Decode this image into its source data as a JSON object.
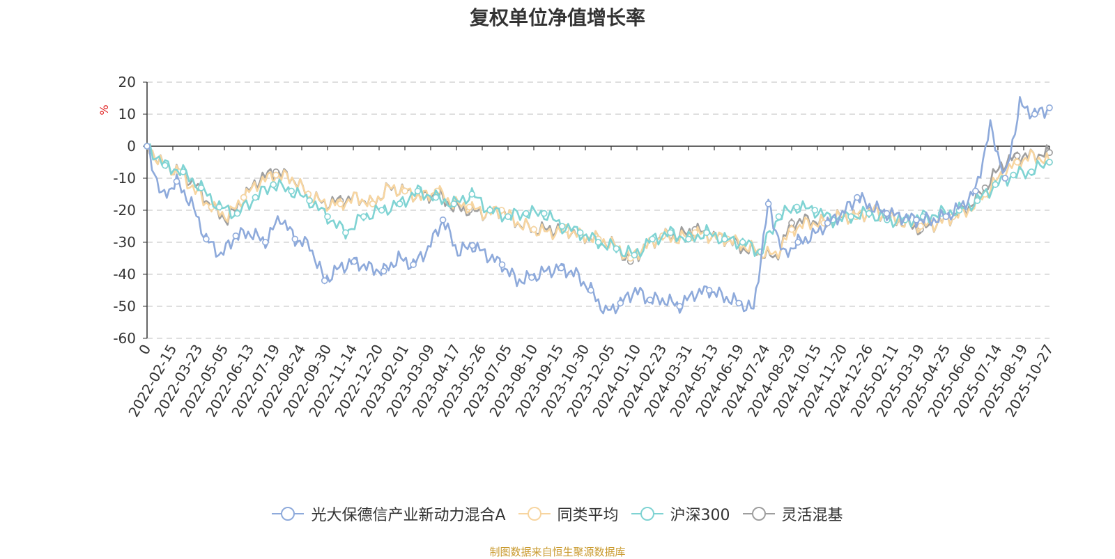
{
  "title": "复权单位净值增长率",
  "footer": "制图数据来自恒生聚源数据库",
  "chart_data": {
    "type": "line",
    "title": "复权单位净值增长率",
    "ylabel": "%",
    "xlabel": "",
    "ylim": [
      -60,
      20
    ],
    "yticks": [
      20,
      10,
      0,
      -10,
      -20,
      -30,
      -40,
      -50,
      -60
    ],
    "grid": true,
    "legend_position": "bottom",
    "x_tick_labels": [
      "0",
      "2022-02-15",
      "2022-03-23",
      "2022-05-05",
      "2022-06-13",
      "2022-07-19",
      "2022-08-24",
      "2022-09-30",
      "2022-11-14",
      "2022-12-20",
      "2023-02-01",
      "2023-03-09",
      "2023-04-17",
      "2023-05-26",
      "2023-07-05",
      "2023-08-10",
      "2023-09-15",
      "2023-10-30",
      "2023-12-05",
      "2024-01-10",
      "2024-02-23",
      "2024-03-31",
      "2024-05-13",
      "2024-06-19",
      "2024-07-24",
      "2024-08-29",
      "2024-10-15",
      "2024-11-20",
      "2024-12-26",
      "2025-02-11",
      "2025-03-19",
      "2025-04-25",
      "2025-06-06",
      "2025-07-14",
      "2025-08-19",
      "2025-10-27"
    ],
    "series": [
      {
        "name": "光大保德信产业新动力混合A",
        "color": "#8eaadb",
        "values": [
          0,
          -16,
          -11,
          -18,
          -29,
          -34,
          -28,
          -27,
          -30,
          -22,
          -29,
          -31,
          -42,
          -38,
          -36,
          -38,
          -39,
          -35,
          -37,
          -32,
          -23,
          -33,
          -31,
          -34,
          -37,
          -42,
          -41,
          -39,
          -38,
          -40,
          -45,
          -52,
          -49,
          -45,
          -48,
          -48,
          -50,
          -46,
          -45,
          -47,
          -49,
          -51,
          -18,
          -34,
          -30,
          -28,
          -24,
          -21,
          -16,
          -19,
          -21,
          -22,
          -23,
          -23,
          -22,
          -19,
          -14,
          6,
          -10,
          13,
          10,
          12
        ]
      },
      {
        "name": "同类平均",
        "color": "#f7d5a0",
        "values": [
          0,
          -6,
          -8,
          -14,
          -19,
          -22,
          -16,
          -11,
          -9,
          -10,
          -15,
          -18,
          -18,
          -16,
          -18,
          -13,
          -14,
          -16,
          -14,
          -18,
          -19,
          -21,
          -20,
          -24,
          -26,
          -27,
          -26,
          -28,
          -29,
          -31,
          -35,
          -31,
          -28,
          -29,
          -27,
          -28,
          -29,
          -31,
          -33,
          -34,
          -26,
          -24,
          -24,
          -22,
          -22,
          -20,
          -22,
          -24,
          -25,
          -24,
          -22,
          -20,
          -15,
          -9,
          -5,
          -3,
          -5
        ]
      },
      {
        "name": "沪深300",
        "color": "#7fd3d3",
        "values": [
          0,
          -6,
          -8,
          -13,
          -19,
          -21,
          -16,
          -12,
          -14,
          -17,
          -22,
          -27,
          -22,
          -20,
          -18,
          -14,
          -16,
          -18,
          -15,
          -20,
          -22,
          -21,
          -21,
          -25,
          -27,
          -30,
          -32,
          -34,
          -29,
          -27,
          -29,
          -27,
          -29,
          -30,
          -33,
          -22,
          -19,
          -20,
          -23,
          -22,
          -21,
          -23,
          -23,
          -22,
          -21,
          -20,
          -17,
          -12,
          -9,
          -8,
          -5
        ]
      },
      {
        "name": "灵活混基",
        "color": "#9e9e9e",
        "values": [
          0,
          -6,
          -8,
          -12,
          -19,
          -23,
          -16,
          -10,
          -8,
          -10,
          -15,
          -18,
          -17,
          -16,
          -18,
          -13,
          -14,
          -16,
          -15,
          -19,
          -20,
          -21,
          -20,
          -24,
          -26,
          -26,
          -26,
          -28,
          -29,
          -31,
          -36,
          -31,
          -28,
          -28,
          -26,
          -28,
          -29,
          -32,
          -33,
          -35,
          -24,
          -23,
          -24,
          -22,
          -22,
          -20,
          -22,
          -24,
          -26,
          -24,
          -22,
          -19,
          -13,
          -6,
          -3,
          -3,
          -2
        ]
      }
    ]
  }
}
